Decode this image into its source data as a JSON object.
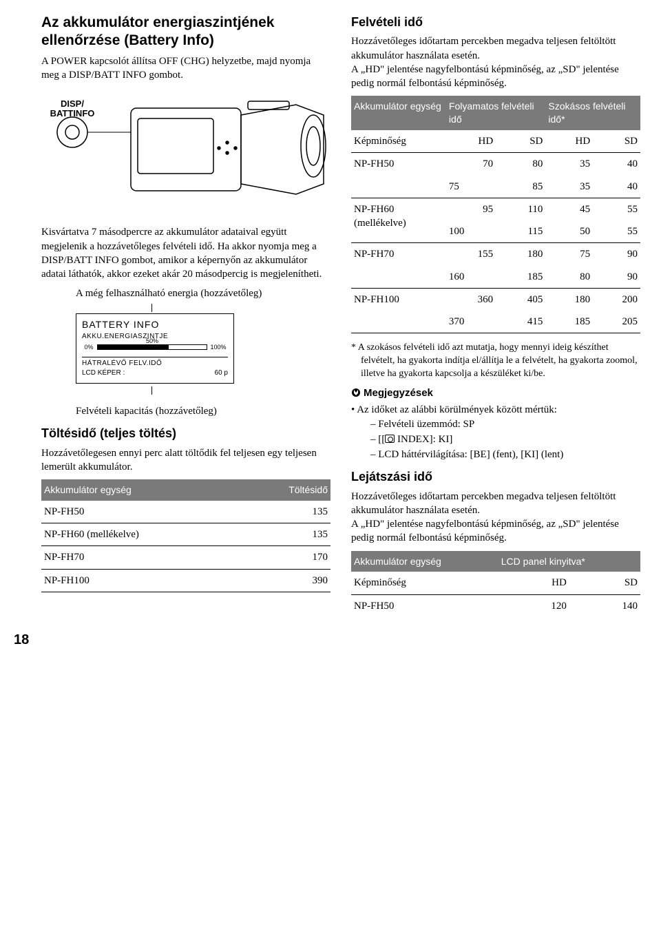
{
  "page_number": "18",
  "left": {
    "title": "Az akkumulátor energiaszintjének ellenőrzése (Battery Info)",
    "intro": "A POWER kapcsolót állítsa OFF (CHG) helyzetbe, majd nyomja meg a DISP/BATT INFO gombot.",
    "button_label_1": "DISP/",
    "button_label_2": "BATTINFO",
    "para2": "Kisvártatva 7 másodpercre az akkumulátor adataival együtt megjelenik a hozzávetőleges felvételi idő. Ha akkor nyomja meg a DISP/BATT INFO gombot, amikor a képernyőn az akkumulátor adatai láthatók, akkor ezeket akár 20 másodpercig is megjelenítheti.",
    "caption_top": "A még felhasználható energia (hozzávetőleg)",
    "battinfo": {
      "title": "BATTERY INFO",
      "sub": "AKKU.ENERGIASZINTJE",
      "pct0": "0%",
      "pct50": "50%",
      "pct100": "100%",
      "fill_pct": 65,
      "remain_label": "HÁTRALÉVŐ FELV.IDŐ",
      "remain_row_label": "LCD KÉPER :",
      "remain_row_value": "60  p"
    },
    "caption_bottom": "Felvételi kapacitás (hozzávetőleg)",
    "sub_charge": "Töltésidő (teljes töltés)",
    "charge_intro": "Hozzávetőlegesen ennyi perc alatt töltődik fel teljesen egy teljesen lemerült akkumulátor.",
    "charge_table": {
      "h1": "Akkumulátor egység",
      "h2": "Töltésidő",
      "rows": [
        [
          "NP-FH50",
          "135"
        ],
        [
          "NP-FH60 (mellékelve)",
          "135"
        ],
        [
          "NP-FH70",
          "170"
        ],
        [
          "NP-FH100",
          "390"
        ]
      ]
    }
  },
  "right": {
    "title": "Felvételi idő",
    "intro": "Hozzávetőleges időtartam percekben megadva teljesen feltöltött akkumulátor használata esetén.\nA „HD\" jelentése nagyfelbontású képminőség, az „SD\" jelentése pedig normál felbontású képminőség.",
    "rec_table": {
      "h1": "Akkumulátor egység",
      "h2": "Folyamatos felvételi idő",
      "h3": "Szokásos felvételi idő*",
      "subhead": [
        "Képminőség",
        "HD",
        "SD",
        "HD",
        "SD"
      ],
      "rows": [
        [
          "NP-FH50",
          "70",
          "80",
          "35",
          "40"
        ],
        [
          "",
          "75",
          "85",
          "35",
          "40"
        ],
        [
          "NP-FH60 (mellékelve)",
          "95",
          "110",
          "45",
          "55"
        ],
        [
          "",
          "100",
          "115",
          "50",
          "55"
        ],
        [
          "NP-FH70",
          "155",
          "180",
          "75",
          "90"
        ],
        [
          "",
          "160",
          "185",
          "80",
          "90"
        ],
        [
          "NP-FH100",
          "360",
          "405",
          "180",
          "200"
        ],
        [
          "",
          "370",
          "415",
          "185",
          "205"
        ]
      ]
    },
    "footnote": "* A szokásos felvételi idő azt mutatja, hogy mennyi ideig készíthet felvételt, ha gyakorta indítja el/állítja le a felvételt, ha gyakorta zoomol, illetve ha gyakorta kapcsolja a készüléket ki/be.",
    "notes_label": "Megjegyzések",
    "notes_bullet": "Az időket az alábbi körülmények között mértük:",
    "notes_dashes": [
      "Felvételi üzemmód: SP",
      "[__ICON__ INDEX]: [KI]",
      "LCD háttérvilágítása: [BE] (fent), [KI] (lent)"
    ],
    "sub_play": "Lejátszási idő",
    "play_intro": "Hozzávetőleges időtartam percekben megadva teljesen feltöltött akkumulátor használata esetén.\nA „HD\" jelentése nagyfelbontású képminőség, az „SD\" jelentése pedig normál felbontású képminőség.",
    "play_table": {
      "h1": "Akkumulátor egység",
      "h2": "LCD panel kinyitva*",
      "subhead": [
        "Képminőség",
        "HD",
        "SD"
      ],
      "rows": [
        [
          "NP-FH50",
          "120",
          "140"
        ]
      ]
    }
  }
}
